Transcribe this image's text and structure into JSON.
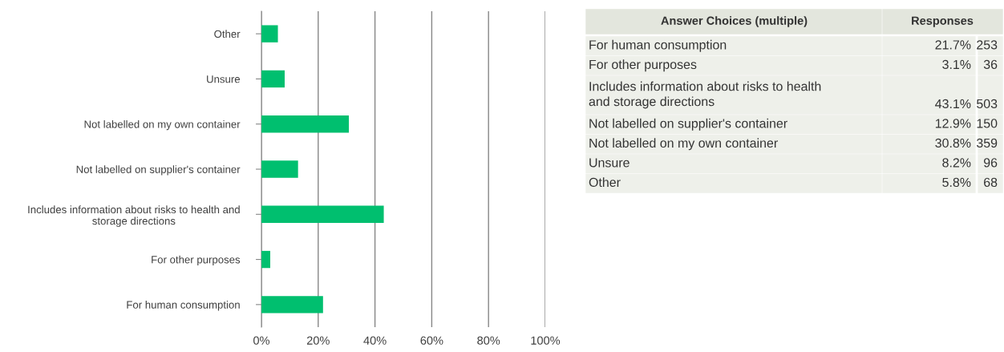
{
  "chart_data": [
    {
      "type": "bar",
      "orientation": "horizontal",
      "color": "#00bf6f",
      "categories": [
        "Other",
        "Unsure",
        "Not labelled on my own container",
        "Not labelled on supplier's container",
        "Includes information about risks to health and\nstorage directions",
        "For other purposes",
        "For human consumption"
      ],
      "values": [
        5.8,
        8.2,
        30.8,
        12.9,
        43.1,
        3.1,
        21.7
      ],
      "xlim": [
        0,
        100
      ],
      "xticks": [
        {
          "value": 0,
          "label": "0%"
        },
        {
          "value": 20,
          "label": "20%"
        },
        {
          "value": 40,
          "label": "40%"
        },
        {
          "value": 60,
          "label": "60%"
        },
        {
          "value": 80,
          "label": "80%"
        },
        {
          "value": 100,
          "label": "100%"
        }
      ],
      "grid": "x",
      "legend": false
    },
    {
      "type": "other",
      "annotations": [
        "Answer Choices (multiple)",
        "Responses",
        "For human consumption",
        "21.7%",
        "253",
        "For other purposes",
        "3.1%",
        "36",
        "Includes information about risks to health\nand storage directions",
        "43.1%",
        "503",
        "Not labelled on supplier's container",
        "12.9%",
        "150",
        "Not labelled on my own container",
        "30.8%",
        "359",
        "Unsure",
        "8.2%",
        "96",
        "Other",
        "5.8%",
        "68"
      ]
    }
  ]
}
